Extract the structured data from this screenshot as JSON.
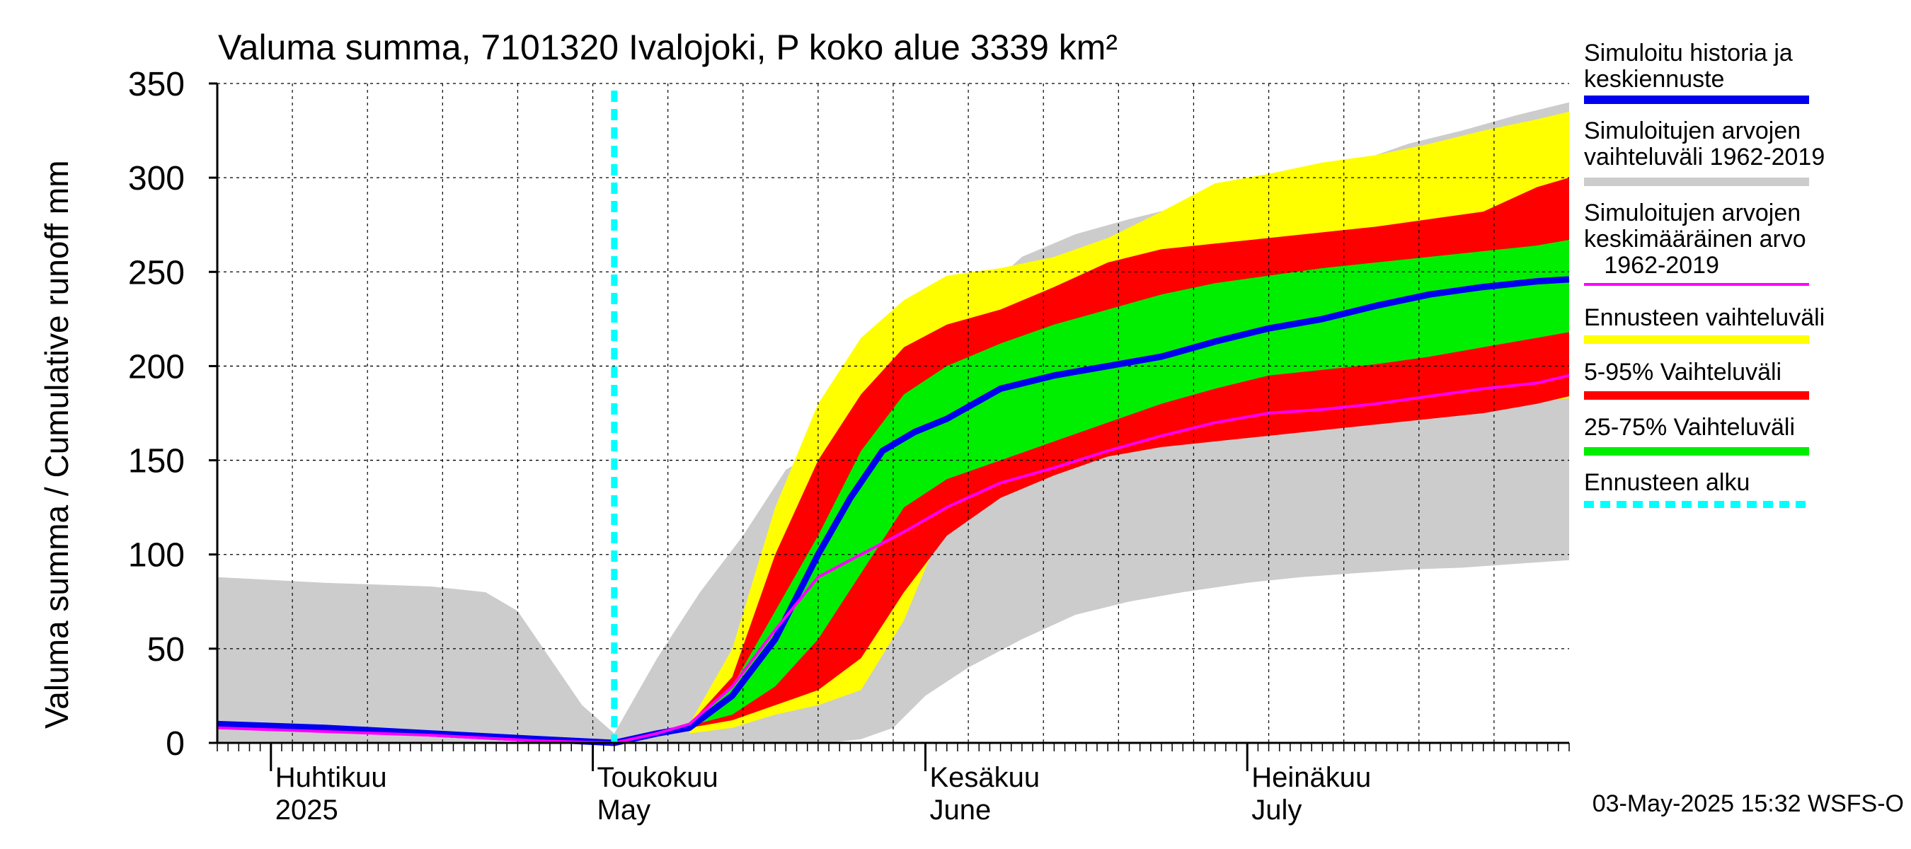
{
  "chart_data": {
    "type": "area",
    "title": "Valuma summa, 7101320 Ivalojoki, P koko alue 3339 km²",
    "ylabel": "Valuma summa / Cumulative runoff    mm",
    "ylim": [
      0,
      350
    ],
    "yticks": [
      0,
      50,
      100,
      150,
      200,
      250,
      300,
      350
    ],
    "xlim": [
      "2025-03-27",
      "2025-07-31"
    ],
    "grid": true,
    "legend_position": "right",
    "footer": "03-May-2025 15:32 WSFS-O",
    "forecast_start": "2025-05-03",
    "month_labels": [
      {
        "fi": "Huhtikuu",
        "en": "2025",
        "date": "2025-04-01"
      },
      {
        "fi": "Toukokuu",
        "en": "May",
        "date": "2025-05-01"
      },
      {
        "fi": "Kesäkuu",
        "en": "June",
        "date": "2025-06-01"
      },
      {
        "fi": "Heinäkuu",
        "en": "July",
        "date": "2025-07-01"
      }
    ],
    "legend": [
      {
        "label": "Simuloitu historia ja\nkeskiennuste",
        "color": "#0000ee",
        "style": "line"
      },
      {
        "label": "Simuloitujen arvojen\nvaihteluväli 1962-2019",
        "color": "#cccccc",
        "style": "line"
      },
      {
        "label": "Simuloitujen arvojen\nkeskimääräinen arvo\n   1962-2019",
        "color": "#ff00ff",
        "style": "thin"
      },
      {
        "label": "Ennusteen vaihteluväli",
        "color": "#ffff00",
        "style": "line"
      },
      {
        "label": "5-95% Vaihteluväli",
        "color": "#ff0000",
        "style": "line"
      },
      {
        "label": "25-75% Vaihteluväli",
        "color": "#00ee00",
        "style": "line"
      },
      {
        "label": "Ennusteen alku",
        "color": "#00ffff",
        "style": "dashed"
      }
    ],
    "hist_range": {
      "name": "Simuloitujen arvojen vaihteluväli 1962-2019",
      "color": "#cccccc",
      "x": [
        "2025-03-27",
        "2025-04-06",
        "2025-04-16",
        "2025-04-21",
        "2025-04-24",
        "2025-04-27",
        "2025-04-30",
        "2025-05-03",
        "2025-05-07",
        "2025-05-11",
        "2025-05-15",
        "2025-05-19",
        "2025-05-23",
        "2025-05-26",
        "2025-05-29",
        "2025-06-01",
        "2025-06-05",
        "2025-06-10",
        "2025-06-15",
        "2025-06-20",
        "2025-06-25",
        "2025-07-01",
        "2025-07-06",
        "2025-07-11",
        "2025-07-16",
        "2025-07-21",
        "2025-07-26",
        "2025-07-31"
      ],
      "upper": [
        88,
        85,
        83,
        80,
        70,
        45,
        20,
        5,
        45,
        80,
        110,
        145,
        158,
        168,
        185,
        218,
        232,
        258,
        270,
        278,
        285,
        292,
        298,
        308,
        318,
        325,
        333,
        340
      ],
      "lower": [
        0,
        0,
        0,
        0,
        0,
        0,
        0,
        0,
        0,
        0,
        0,
        0,
        0,
        2,
        8,
        25,
        40,
        55,
        68,
        75,
        80,
        85,
        88,
        90,
        92,
        93,
        95,
        97
      ]
    },
    "forecast_range": {
      "name": "Ennusteen vaihteluväli",
      "color": "#ffff00",
      "x": [
        "2025-05-10",
        "2025-05-14",
        "2025-05-18",
        "2025-05-22",
        "2025-05-26",
        "2025-05-30",
        "2025-06-03",
        "2025-06-08",
        "2025-06-13",
        "2025-06-18",
        "2025-06-23",
        "2025-06-28",
        "2025-07-03",
        "2025-07-08",
        "2025-07-13",
        "2025-07-18",
        "2025-07-23",
        "2025-07-28",
        "2025-07-31"
      ],
      "upper": [
        10,
        50,
        125,
        180,
        215,
        235,
        248,
        252,
        258,
        268,
        282,
        297,
        302,
        308,
        312,
        318,
        325,
        331,
        335
      ],
      "lower": [
        5,
        8,
        15,
        20,
        28,
        65,
        120,
        135,
        147,
        153,
        158,
        162,
        165,
        168,
        171,
        174,
        177,
        181,
        183
      ]
    },
    "range_5_95": {
      "name": "5-95% Vaihteluväli",
      "color": "#ff0000",
      "x": [
        "2025-05-10",
        "2025-05-14",
        "2025-05-18",
        "2025-05-22",
        "2025-05-26",
        "2025-05-30",
        "2025-06-03",
        "2025-06-08",
        "2025-06-13",
        "2025-06-18",
        "2025-06-23",
        "2025-06-28",
        "2025-07-03",
        "2025-07-08",
        "2025-07-13",
        "2025-07-18",
        "2025-07-23",
        "2025-07-28",
        "2025-07-31"
      ],
      "upper": [
        10,
        35,
        100,
        150,
        185,
        210,
        222,
        230,
        242,
        255,
        262,
        265,
        268,
        271,
        274,
        278,
        282,
        295,
        300
      ],
      "lower": [
        8,
        12,
        20,
        28,
        45,
        80,
        110,
        130,
        142,
        152,
        157,
        160,
        163,
        166,
        169,
        172,
        175,
        180,
        184
      ]
    },
    "range_25_75": {
      "name": "25-75% Vaihteluväli",
      "color": "#00ee00",
      "x": [
        "2025-05-10",
        "2025-05-14",
        "2025-05-18",
        "2025-05-22",
        "2025-05-26",
        "2025-05-30",
        "2025-06-03",
        "2025-06-08",
        "2025-06-13",
        "2025-06-18",
        "2025-06-23",
        "2025-06-28",
        "2025-07-03",
        "2025-07-08",
        "2025-07-13",
        "2025-07-18",
        "2025-07-23",
        "2025-07-28",
        "2025-07-31"
      ],
      "upper": [
        10,
        30,
        70,
        110,
        155,
        185,
        200,
        212,
        222,
        230,
        238,
        244,
        248,
        252,
        255,
        258,
        261,
        264,
        267
      ],
      "lower": [
        9,
        15,
        30,
        55,
        90,
        125,
        140,
        150,
        160,
        170,
        180,
        188,
        195,
        198,
        201,
        205,
        210,
        215,
        218
      ]
    },
    "series": [
      {
        "name": "Simuloitu historia ja keskiennuste",
        "color": "#0000ee",
        "x": [
          "2025-03-27",
          "2025-04-06",
          "2025-04-16",
          "2025-04-26",
          "2025-05-03",
          "2025-05-07",
          "2025-05-10",
          "2025-05-14",
          "2025-05-18",
          "2025-05-22",
          "2025-05-25",
          "2025-05-28",
          "2025-05-31",
          "2025-06-03",
          "2025-06-08",
          "2025-06-13",
          "2025-06-18",
          "2025-06-23",
          "2025-06-28",
          "2025-07-03",
          "2025-07-08",
          "2025-07-13",
          "2025-07-18",
          "2025-07-23",
          "2025-07-28",
          "2025-07-31"
        ],
        "y": [
          10,
          8,
          5,
          2,
          0,
          5,
          8,
          25,
          55,
          100,
          130,
          155,
          165,
          172,
          188,
          195,
          200,
          205,
          213,
          220,
          225,
          232,
          238,
          242,
          245,
          246
        ]
      },
      {
        "name": "Simuloitujen arvojen keskimääräinen arvo 1962-2019",
        "color": "#ff00ff",
        "x": [
          "2025-03-27",
          "2025-04-06",
          "2025-04-16",
          "2025-04-26",
          "2025-05-03",
          "2025-05-07",
          "2025-05-10",
          "2025-05-14",
          "2025-05-18",
          "2025-05-22",
          "2025-05-26",
          "2025-05-30",
          "2025-06-03",
          "2025-06-08",
          "2025-06-13",
          "2025-06-18",
          "2025-06-23",
          "2025-06-28",
          "2025-07-03",
          "2025-07-08",
          "2025-07-13",
          "2025-07-18",
          "2025-07-23",
          "2025-07-28",
          "2025-07-31"
        ],
        "y": [
          8,
          6,
          4,
          1,
          0,
          5,
          10,
          30,
          60,
          88,
          100,
          112,
          125,
          138,
          146,
          155,
          163,
          170,
          175,
          177,
          180,
          184,
          188,
          191,
          195
        ]
      }
    ]
  }
}
